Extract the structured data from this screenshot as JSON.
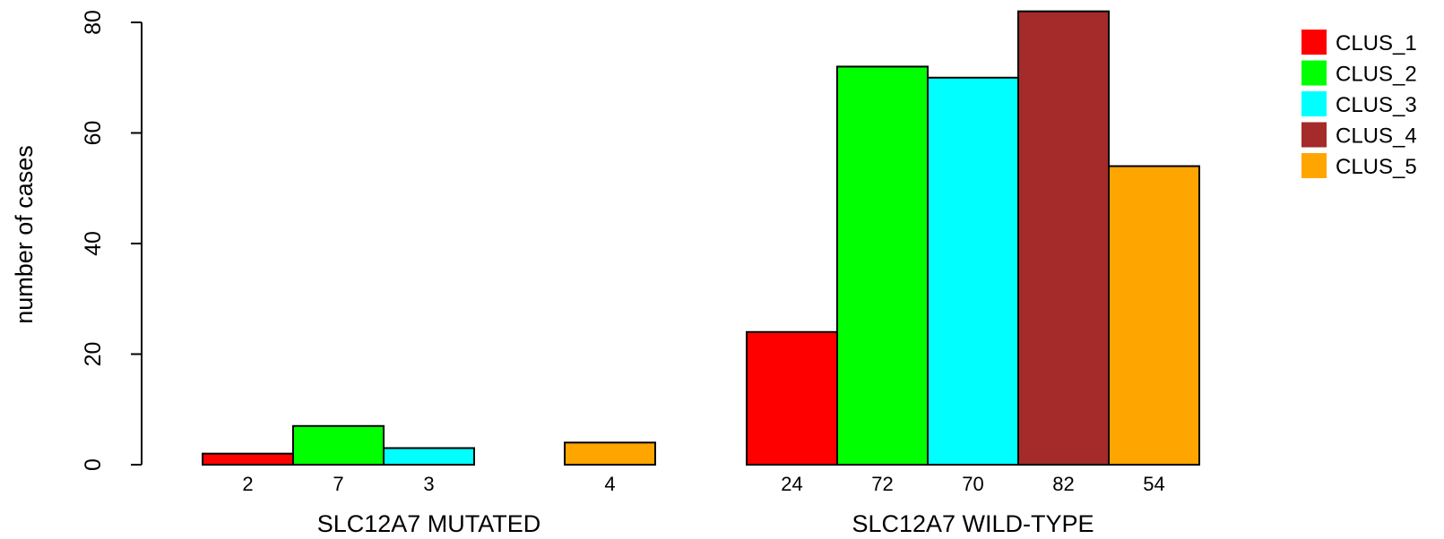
{
  "chart_data": {
    "type": "bar",
    "groups": [
      "SLC12A7 MUTATED",
      "SLC12A7 WILD-TYPE"
    ],
    "series": [
      {
        "name": "CLUS_1",
        "color": "#ff0000",
        "values": [
          2,
          24
        ]
      },
      {
        "name": "CLUS_2",
        "color": "#00ff00",
        "values": [
          7,
          72
        ]
      },
      {
        "name": "CLUS_3",
        "color": "#00ffff",
        "values": [
          3,
          70
        ]
      },
      {
        "name": "CLUS_4",
        "color": "#a52a2a",
        "values": [
          0,
          82
        ]
      },
      {
        "name": "CLUS_5",
        "color": "#ffa500",
        "values": [
          4,
          54
        ]
      }
    ],
    "ylabel": "number of cases",
    "ylim": [
      0,
      80
    ],
    "yticks": [
      0,
      20,
      40,
      60,
      80
    ],
    "legend_position": "top-right",
    "grid": false
  }
}
